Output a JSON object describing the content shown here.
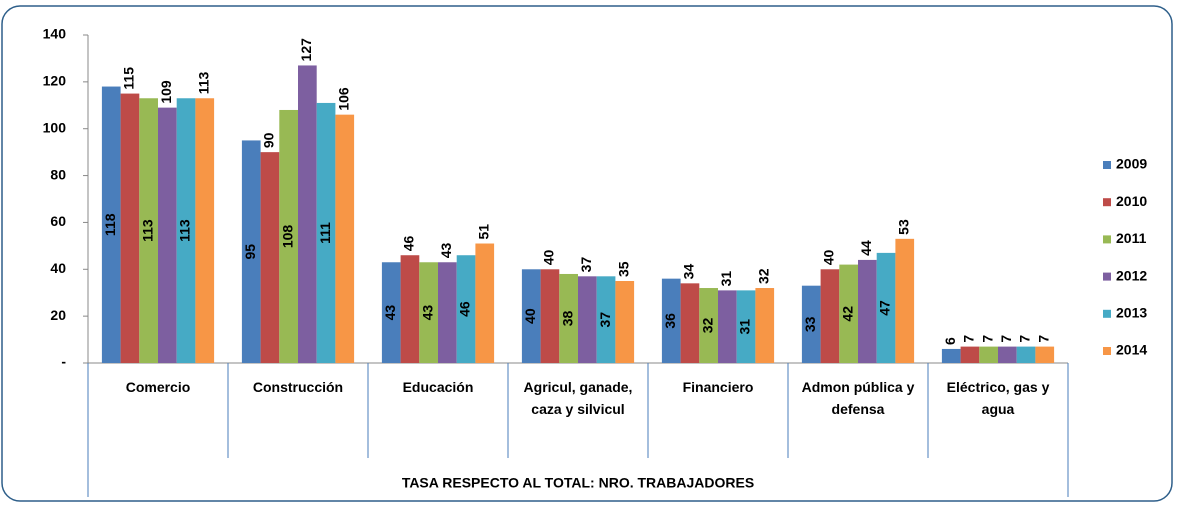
{
  "chart_data": {
    "type": "bar",
    "categories": [
      "Comercio",
      "Construcción",
      "Educación",
      "Agricul, ganade, caza y silvicul",
      "Financiero",
      "Admon pública y defensa",
      "Eléctrico, gas y agua"
    ],
    "series": [
      {
        "name": "2009",
        "color": "#4a7ebb",
        "values": [
          118,
          95,
          43,
          40,
          36,
          33,
          6
        ]
      },
      {
        "name": "2010",
        "color": "#be4b48",
        "values": [
          115,
          90,
          46,
          40,
          34,
          40,
          7
        ]
      },
      {
        "name": "2011",
        "color": "#98b954",
        "values": [
          113,
          108,
          43,
          38,
          32,
          42,
          7
        ]
      },
      {
        "name": "2012",
        "color": "#7d5fa0",
        "values": [
          109,
          127,
          43,
          37,
          31,
          44,
          7
        ]
      },
      {
        "name": "2013",
        "color": "#46aac5",
        "values": [
          113,
          111,
          46,
          37,
          31,
          47,
          7
        ]
      },
      {
        "name": "2014",
        "color": "#f79646",
        "values": [
          113,
          106,
          51,
          35,
          32,
          53,
          7
        ]
      }
    ],
    "xlabel": "TASA RESPECTO AL TOTAL: NRO. TRABAJADORES",
    "ylim": [
      0,
      140
    ],
    "yticks": [
      {
        "value": 0,
        "label": "-"
      },
      20,
      40,
      60,
      80,
      100,
      120,
      140
    ],
    "legend": "right"
  }
}
